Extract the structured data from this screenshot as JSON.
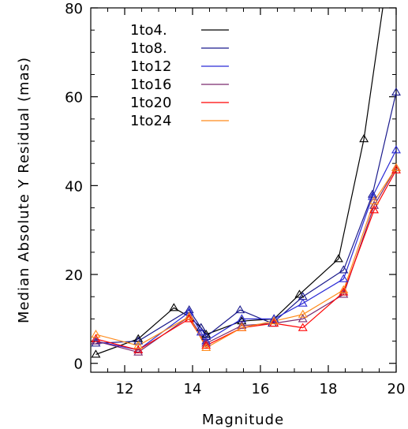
{
  "chart_data": {
    "type": "line",
    "xlabel": "Magnitude",
    "ylabel": "Median Absolute Y Residual (mas)",
    "xlim": [
      11,
      20
    ],
    "ylim": [
      -2,
      80
    ],
    "x_ticks": [
      12,
      14,
      16,
      18,
      20
    ],
    "y_ticks": [
      0,
      20,
      40,
      60,
      80
    ],
    "marker": "triangle",
    "grid": false,
    "legend_placement": "top-left",
    "series": [
      {
        "name": "1to4.",
        "color": "#000000",
        "x": [
          11.15,
          12.4,
          13.45,
          13.9,
          14.25,
          14.4,
          15.45,
          16.4,
          17.15,
          18.3,
          19.05,
          19.7
        ],
        "y": [
          2,
          5.5,
          12.5,
          10.5,
          8,
          6.5,
          9.5,
          10,
          15.5,
          23.5,
          50.5,
          85
        ]
      },
      {
        "name": "1to8.",
        "color": "#1a1a8c",
        "x": [
          11.15,
          12.4,
          13.9,
          14.25,
          14.4,
          15.4,
          16.35,
          17.25,
          18.45,
          19.3,
          20.0
        ],
        "y": [
          4.5,
          5,
          12,
          8,
          6,
          12,
          9,
          15,
          21,
          38,
          61
        ]
      },
      {
        "name": "1to12",
        "color": "#2b2bd6",
        "x": [
          11.15,
          12.4,
          13.9,
          14.25,
          14.4,
          15.45,
          16.4,
          17.25,
          18.45,
          19.3,
          20.0
        ],
        "y": [
          5,
          3,
          11.5,
          7,
          5,
          10,
          10,
          13.5,
          19,
          37.5,
          48
        ]
      },
      {
        "name": "1to16",
        "color": "#7a2a6e",
        "x": [
          11.15,
          12.4,
          13.9,
          14.4,
          15.45,
          16.4,
          17.25,
          18.45,
          19.35,
          20.0
        ],
        "y": [
          5,
          2.5,
          10.5,
          4.5,
          8.5,
          9,
          10,
          15.5,
          35.5,
          44
        ]
      },
      {
        "name": "1to20",
        "color": "#ff0000",
        "x": [
          11.15,
          12.4,
          13.9,
          14.4,
          15.45,
          16.4,
          17.25,
          18.45,
          19.35,
          20.0
        ],
        "y": [
          5.5,
          3,
          10,
          4,
          8,
          9,
          8,
          16,
          34.5,
          43.5
        ]
      },
      {
        "name": "1to24",
        "color": "#ff8a1a",
        "x": [
          11.15,
          12.4,
          13.9,
          14.4,
          15.45,
          16.4,
          17.25,
          18.45,
          19.35,
          20.0
        ],
        "y": [
          6.5,
          4,
          10.5,
          3.5,
          8,
          9.5,
          11,
          16.5,
          36.5,
          44
        ]
      }
    ]
  }
}
